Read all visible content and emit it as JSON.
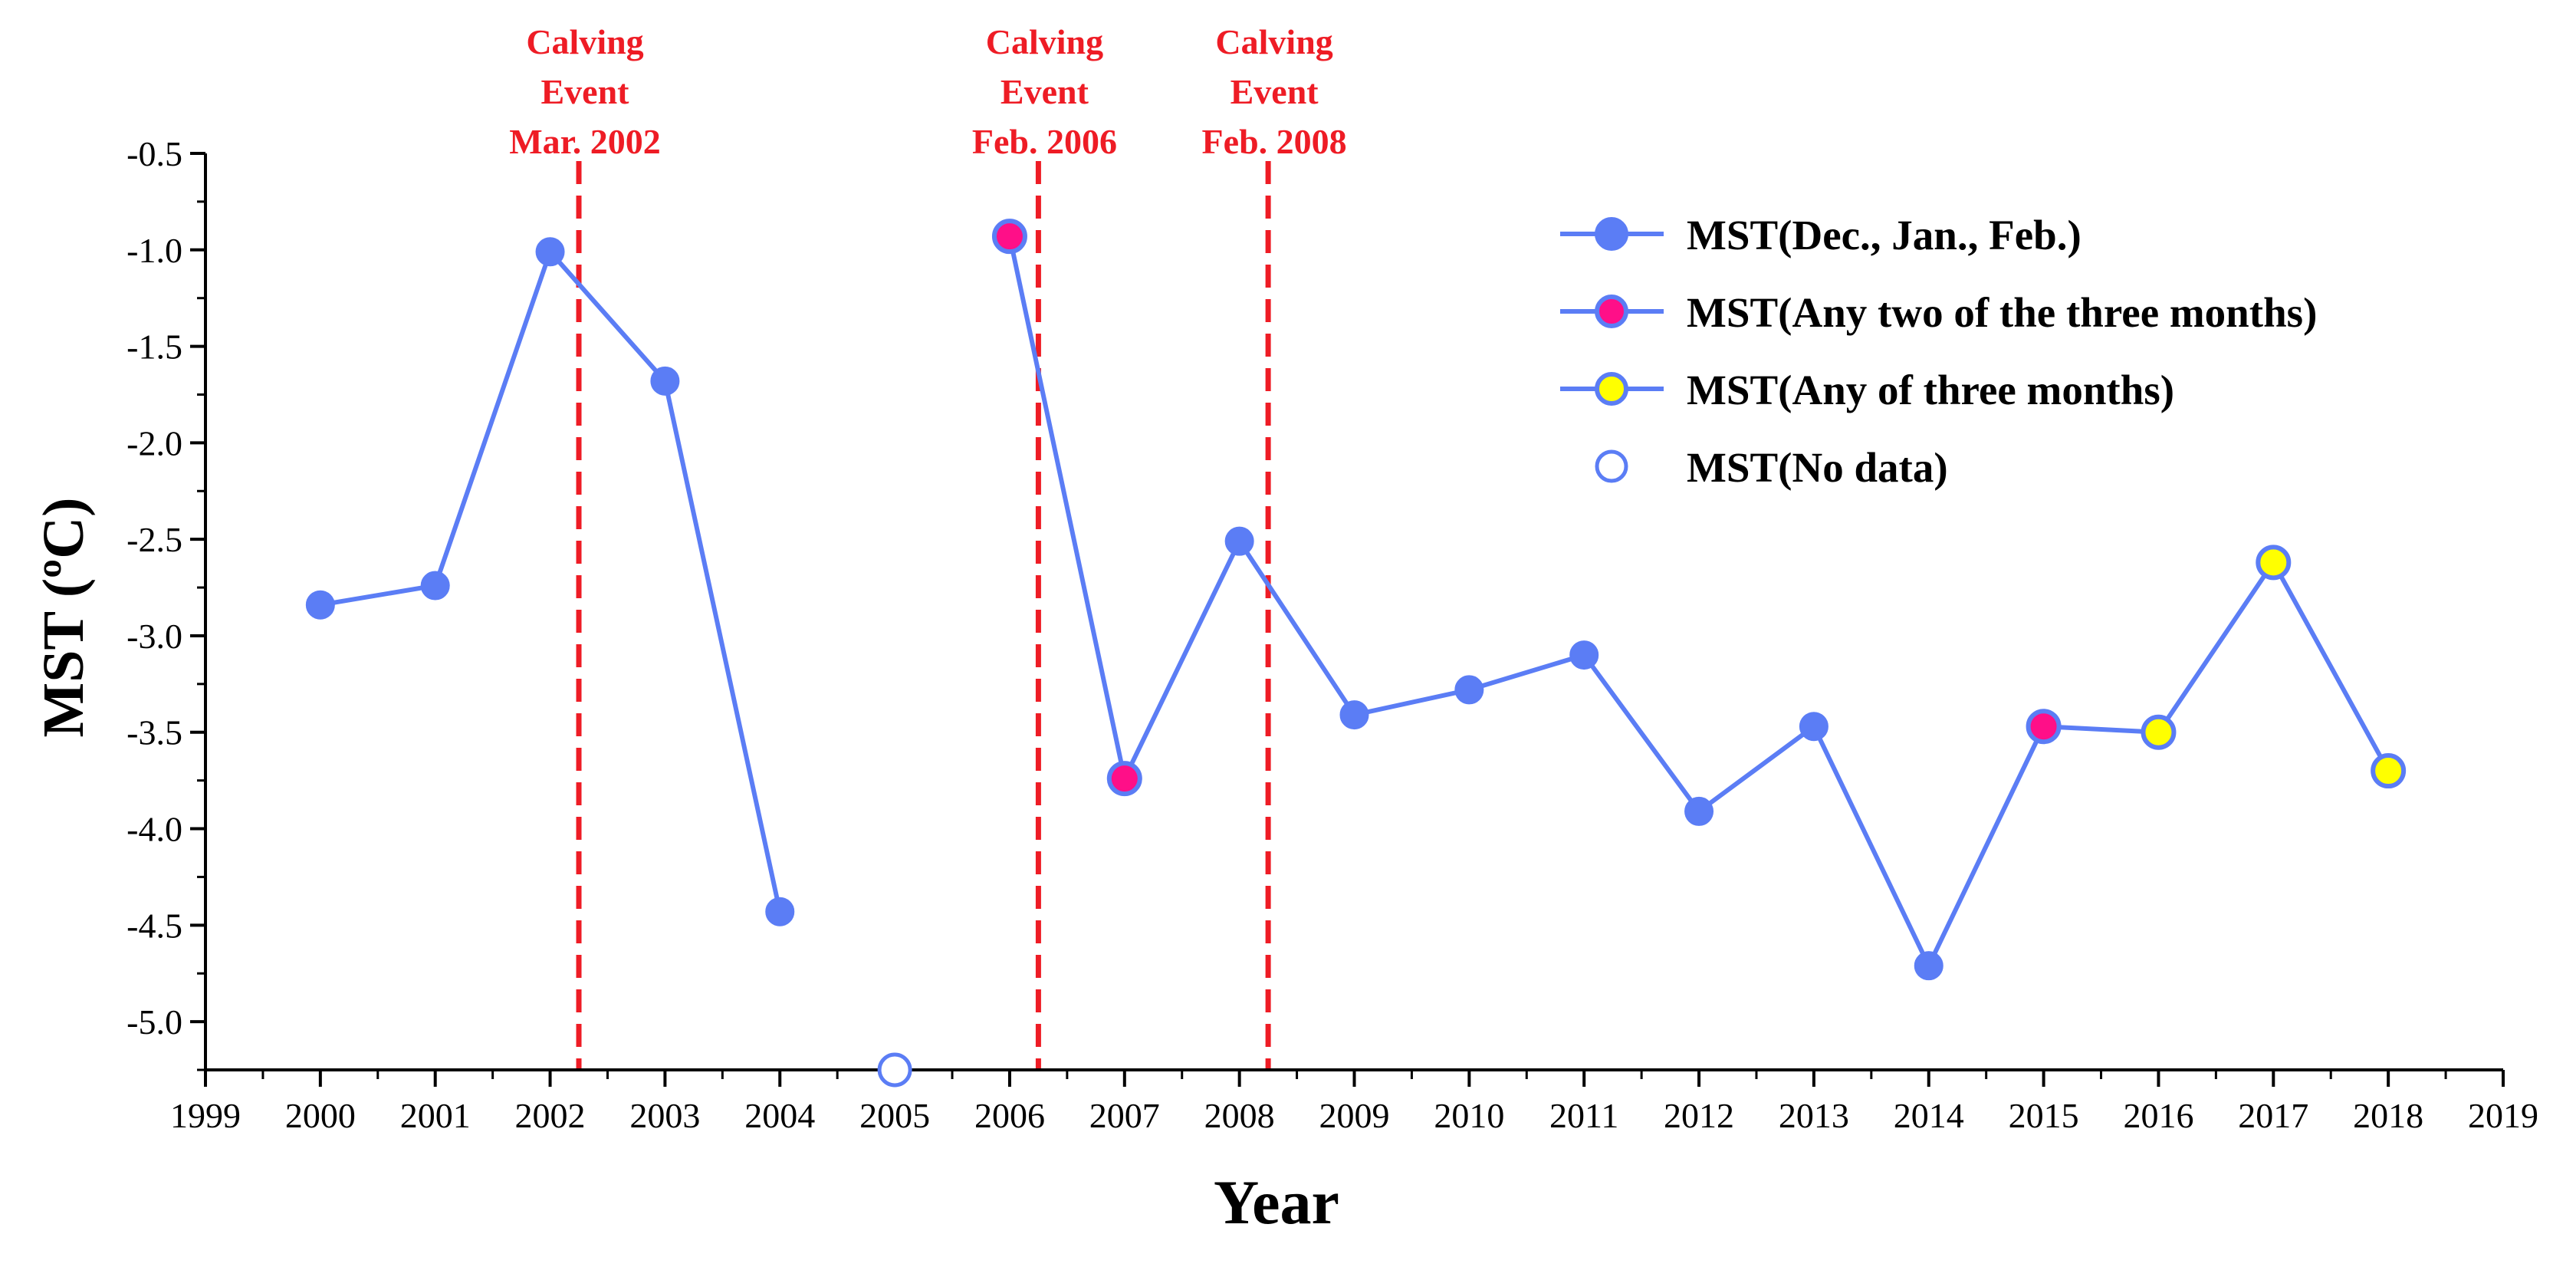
{
  "chart_data": {
    "type": "line",
    "title": "",
    "xlabel": "Year",
    "ylabel": "MST (ºC)",
    "xlim": [
      1999,
      2019
    ],
    "ylim": [
      -5.25,
      -0.5
    ],
    "xticks": [
      1999,
      2000,
      2001,
      2002,
      2003,
      2004,
      2005,
      2006,
      2007,
      2008,
      2009,
      2010,
      2011,
      2012,
      2013,
      2014,
      2015,
      2016,
      2017,
      2018,
      2019
    ],
    "yticks": [
      -0.5,
      -1.0,
      -1.5,
      -2.0,
      -2.5,
      -3.0,
      -3.5,
      -4.0,
      -4.5,
      -5.0
    ],
    "ytick_labels": [
      "-0.5",
      "-1.0",
      "-1.5",
      "-2.0",
      "-2.5",
      "-3.0",
      "-3.5",
      "-4.0",
      "-4.5",
      "-5.0"
    ],
    "grid": false,
    "series": [
      {
        "name": "MST",
        "segments": [
          [
            {
              "x": 2000,
              "y": -2.84,
              "category": "three"
            },
            {
              "x": 2001,
              "y": -2.74,
              "category": "three"
            },
            {
              "x": 2002,
              "y": -1.01,
              "category": "three"
            },
            {
              "x": 2003,
              "y": -1.68,
              "category": "three"
            },
            {
              "x": 2004,
              "y": -4.43,
              "category": "three"
            }
          ],
          [
            {
              "x": 2006,
              "y": -0.93,
              "category": "two"
            },
            {
              "x": 2007,
              "y": -3.74,
              "category": "two"
            },
            {
              "x": 2008,
              "y": -2.51,
              "category": "three"
            },
            {
              "x": 2009,
              "y": -3.41,
              "category": "three"
            },
            {
              "x": 2010,
              "y": -3.28,
              "category": "three"
            },
            {
              "x": 2011,
              "y": -3.1,
              "category": "three"
            },
            {
              "x": 2012,
              "y": -3.91,
              "category": "three"
            },
            {
              "x": 2013,
              "y": -3.47,
              "category": "three"
            },
            {
              "x": 2014,
              "y": -4.71,
              "category": "three"
            },
            {
              "x": 2015,
              "y": -3.47,
              "category": "two"
            },
            {
              "x": 2016,
              "y": -3.5,
              "category": "any"
            },
            {
              "x": 2017,
              "y": -2.62,
              "category": "any"
            },
            {
              "x": 2018,
              "y": -3.7,
              "category": "any"
            }
          ]
        ],
        "no_data": [
          {
            "x": 2005,
            "y": -5.25
          }
        ]
      }
    ],
    "categories": {
      "three": {
        "label": "MST(Dec., Jan., Feb.)",
        "fill": "#5b7df5"
      },
      "two": {
        "label": "MST(Any two of the three months)",
        "fill": "#ff0f88"
      },
      "any": {
        "label": "MST(Any of three months)",
        "fill": "#ffff00"
      },
      "nodata": {
        "label": "MST(No data)",
        "fill": "#ffffff"
      }
    },
    "legend": {
      "position": "top-right",
      "entries": [
        "MST(Dec., Jan., Feb.)",
        "MST(Any two of the three months)",
        "MST(Any of three months)",
        "MST(No data)"
      ]
    },
    "line_color": "#5b7df5",
    "annotations": [
      {
        "x": 2002.25,
        "lines": [
          "Calving",
          "Event",
          "Mar. 2002"
        ],
        "color": "#ee1c25"
      },
      {
        "x": 2006.25,
        "lines": [
          "Calving",
          "Event",
          "Feb. 2006"
        ],
        "color": "#ee1c25"
      },
      {
        "x": 2008.25,
        "lines": [
          "Calving",
          "Event",
          "Feb. 2008"
        ],
        "color": "#ee1c25"
      }
    ]
  }
}
